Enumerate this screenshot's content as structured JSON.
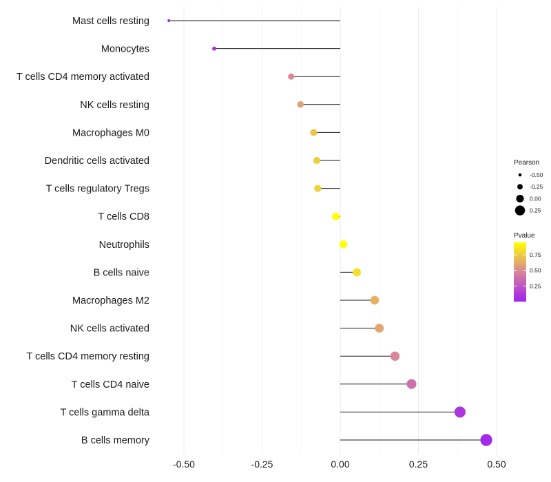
{
  "chart_data": {
    "type": "lollipop",
    "title": "",
    "xlabel": "",
    "ylabel": "",
    "xlim": [
      -0.6,
      0.52
    ],
    "x_ticks": [
      -0.5,
      -0.25,
      0,
      0.25,
      0.5
    ],
    "x_tick_labels": [
      "-0.50",
      "-0.25",
      "0.00",
      "0.25",
      "0.50"
    ],
    "grid": true,
    "categories": [
      "Mast cells resting",
      "Monocytes",
      "T cells CD4 memory activated",
      "NK cells resting",
      "Macrophages M0",
      "Dendritic cells activated",
      "T cells regulatory  Tregs ",
      "T cells CD8",
      "Neutrophils",
      "B cells naive",
      "Macrophages M2",
      "NK cells activated",
      "T cells CD4 memory resting",
      "T cells CD4 naive",
      "T cells gamma delta",
      "B cells memory"
    ],
    "pearson": [
      -0.548,
      -0.403,
      -0.157,
      -0.127,
      -0.085,
      -0.075,
      -0.072,
      -0.014,
      0.01,
      0.053,
      0.11,
      0.125,
      0.175,
      0.228,
      0.383,
      0.467
    ],
    "pvalue": [
      0.02,
      0.08,
      0.5,
      0.58,
      0.72,
      0.76,
      0.77,
      0.96,
      0.97,
      0.83,
      0.65,
      0.6,
      0.48,
      0.38,
      0.1,
      0.04
    ],
    "legend": {
      "size_title": "Pearson",
      "size_values": [
        -0.5,
        -0.25,
        0,
        0.25
      ],
      "size_labels": [
        "-0.50",
        "-0.25",
        "0.00",
        "0.25"
      ],
      "color_title": "Pvalue",
      "color_ticks": [
        0.75,
        0.5,
        0.25
      ],
      "color_tick_labels": [
        "0.75",
        "0.50",
        "0.25"
      ],
      "color_range": [
        0.0,
        0.95
      ],
      "placement": "right"
    },
    "colors": {
      "low": "#a020f0",
      "mid": "#d8859a",
      "high": "#ffff00"
    }
  }
}
